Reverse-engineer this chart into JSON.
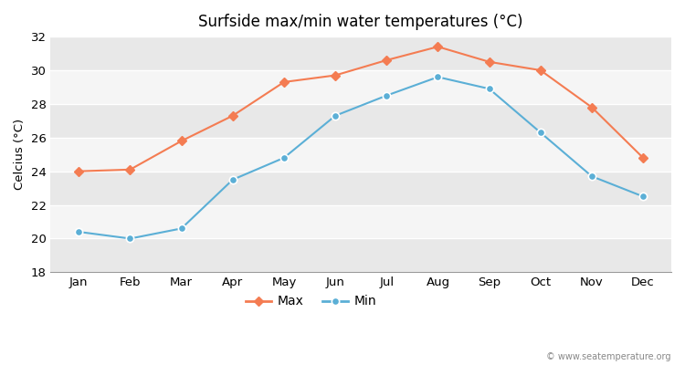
{
  "months": [
    "Jan",
    "Feb",
    "Mar",
    "Apr",
    "May",
    "Jun",
    "Jul",
    "Aug",
    "Sep",
    "Oct",
    "Nov",
    "Dec"
  ],
  "max_temps": [
    24.0,
    24.1,
    25.8,
    27.3,
    29.3,
    29.7,
    30.6,
    31.4,
    30.5,
    30.0,
    27.8,
    24.8
  ],
  "min_temps": [
    20.4,
    20.0,
    20.6,
    23.5,
    24.8,
    27.3,
    28.5,
    29.6,
    28.9,
    26.3,
    23.7,
    22.5
  ],
  "max_color": "#f47c52",
  "min_color": "#5bafd6",
  "title": "Surfside max/min water temperatures (°C)",
  "ylabel": "Celcius (°C)",
  "ylim": [
    18,
    32
  ],
  "yticks": [
    18,
    20,
    22,
    24,
    26,
    28,
    30,
    32
  ],
  "band_colors": [
    "#e8e8e8",
    "#f5f5f5"
  ],
  "grid_color": "#ffffff",
  "watermark": "© www.seatemperature.org",
  "legend_max": "Max",
  "legend_min": "Min"
}
